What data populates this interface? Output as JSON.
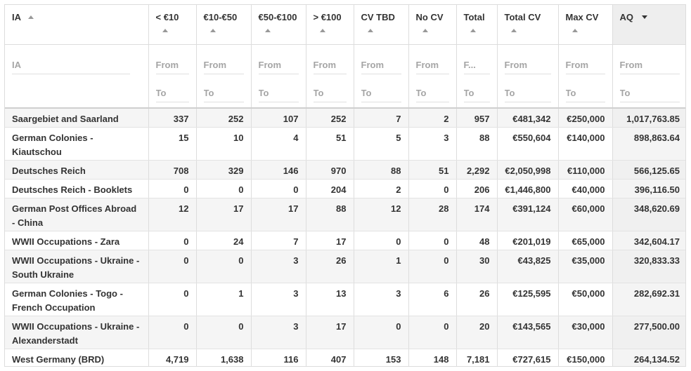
{
  "columns": [
    {
      "key": "ia",
      "label": "IA",
      "filter_placeholder": "IA"
    },
    {
      "key": "lt10",
      "label": "< €10",
      "from": "From",
      "to": "To"
    },
    {
      "key": "10to50",
      "label": "€10-€50",
      "from": "From",
      "to": "To"
    },
    {
      "key": "50to100",
      "label": "€50-€100",
      "from": "From",
      "to": "To"
    },
    {
      "key": "gt100",
      "label": "> €100",
      "from": "From",
      "to": "To"
    },
    {
      "key": "cvtbd",
      "label": "CV TBD",
      "from": "From",
      "to": "To"
    },
    {
      "key": "nocv",
      "label": "No CV",
      "from": "From",
      "to": "To"
    },
    {
      "key": "total",
      "label": "Total",
      "from": "F...",
      "to": "To"
    },
    {
      "key": "totalcv",
      "label": "Total CV",
      "from": "From",
      "to": "To"
    },
    {
      "key": "maxcv",
      "label": "Max CV",
      "from": "From",
      "to": "To"
    },
    {
      "key": "aq",
      "label": "AQ",
      "from": "From",
      "to": "To"
    }
  ],
  "rows": [
    [
      "Saargebiet and Saarland",
      "337",
      "252",
      "107",
      "252",
      "7",
      "2",
      "957",
      "€481,342",
      "€250,000",
      "1,017,763.85"
    ],
    [
      "German Colonies - Kiautschou",
      "15",
      "10",
      "4",
      "51",
      "5",
      "3",
      "88",
      "€550,604",
      "€140,000",
      "898,863.64"
    ],
    [
      "Deutsches Reich",
      "708",
      "329",
      "146",
      "970",
      "88",
      "51",
      "2,292",
      "€2,050,998",
      "€110,000",
      "566,125.65"
    ],
    [
      "Deutsches Reich - Booklets",
      "0",
      "0",
      "0",
      "204",
      "2",
      "0",
      "206",
      "€1,446,800",
      "€40,000",
      "396,116.50"
    ],
    [
      "German Post Offices Abroad - China",
      "12",
      "17",
      "17",
      "88",
      "12",
      "28",
      "174",
      "€391,124",
      "€60,000",
      "348,620.69"
    ],
    [
      "WWII Occupations - Zara",
      "0",
      "24",
      "7",
      "17",
      "0",
      "0",
      "48",
      "€201,019",
      "€65,000",
      "342,604.17"
    ],
    [
      "WWII Occupations - Ukraine - South Ukraine",
      "0",
      "0",
      "3",
      "26",
      "1",
      "0",
      "30",
      "€43,825",
      "€35,000",
      "320,833.33"
    ],
    [
      "German Colonies - Togo - French Occupation",
      "0",
      "1",
      "3",
      "13",
      "3",
      "6",
      "26",
      "€125,595",
      "€50,000",
      "282,692.31"
    ],
    [
      "WWII Occupations - Ukraine - Alexanderstadt",
      "0",
      "0",
      "3",
      "17",
      "0",
      "0",
      "20",
      "€143,565",
      "€30,000",
      "277,500.00"
    ],
    [
      "West Germany (BRD)",
      "4,719",
      "1,638",
      "116",
      "407",
      "153",
      "148",
      "7,181",
      "€727,615",
      "€150,000",
      "264,134.52"
    ]
  ]
}
